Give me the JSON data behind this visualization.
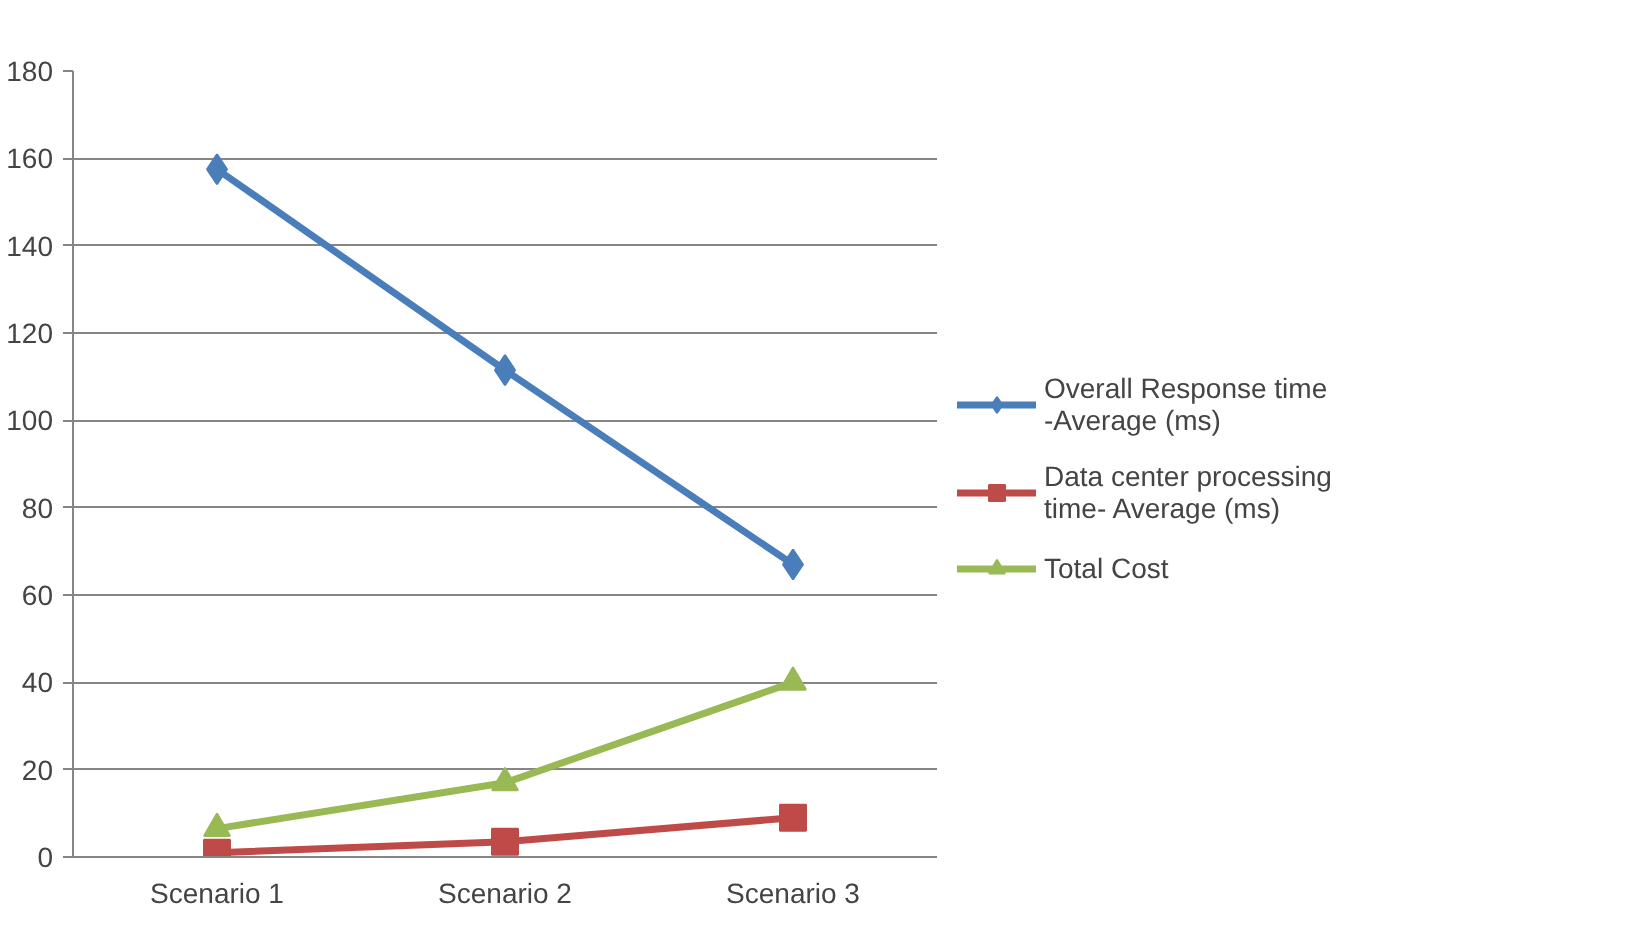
{
  "chart_data": {
    "type": "line",
    "categories": [
      "Scenario 1",
      "Scenario 2",
      "Scenario 3"
    ],
    "series": [
      {
        "name": "Overall Response time\n-Average (ms)",
        "color": "#4a7ebb",
        "marker": "diamond",
        "values": [
          157.5,
          111.5,
          67
        ]
      },
      {
        "name": "Data center processing\ntime- Average (ms)",
        "color": "#be4b48",
        "marker": "square",
        "values": [
          1,
          3.5,
          9
        ]
      },
      {
        "name": "Total Cost",
        "color": "#98b954",
        "marker": "triangle",
        "values": [
          6.5,
          17,
          40
        ]
      }
    ],
    "ylim": [
      0,
      180
    ],
    "yticks": [
      0,
      20,
      40,
      60,
      80,
      100,
      120,
      140,
      160,
      180
    ],
    "grid": "y",
    "legend": "right"
  }
}
